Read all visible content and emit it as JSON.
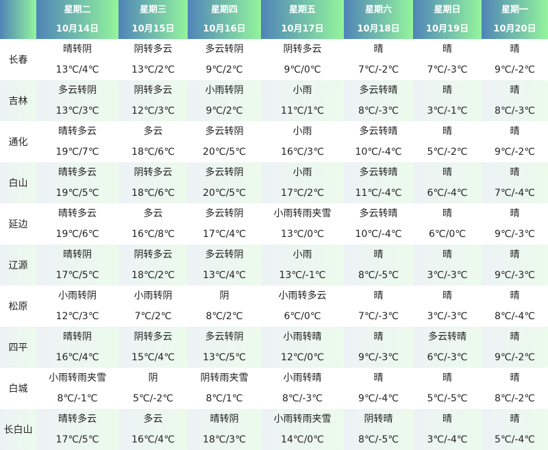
{
  "days": [
    {
      "weekday": "星期二",
      "date": "10月14日"
    },
    {
      "weekday": "星期三",
      "date": "10月15日"
    },
    {
      "weekday": "星期四",
      "date": "10月16日"
    },
    {
      "weekday": "星期五",
      "date": "10月17日"
    },
    {
      "weekday": "星期六",
      "date": "10月18日"
    },
    {
      "weekday": "星期日",
      "date": "10月19日"
    },
    {
      "weekday": "星期一",
      "date": "10月20日"
    }
  ],
  "colors": {
    "header_start": "#4f84b8",
    "header_end": "#93f59c",
    "alt_row_start": "#edf2f5",
    "alt_row_end": "#ecfbec"
  },
  "rows": [
    {
      "city": "长春",
      "cells": [
        [
          "晴转阴",
          "13℃/4℃"
        ],
        [
          "阴转多云",
          "13℃/2℃"
        ],
        [
          "多云转阴",
          "9℃/2℃"
        ],
        [
          "阴转多云",
          "9℃/0℃"
        ],
        [
          "晴",
          "7℃/-2℃"
        ],
        [
          "晴",
          "7℃/-3℃"
        ],
        [
          "晴",
          "9℃/-2℃"
        ]
      ]
    },
    {
      "city": "吉林",
      "cells": [
        [
          "多云转阴",
          "13℃/3℃"
        ],
        [
          "阴转多云",
          "12℃/3℃"
        ],
        [
          "小雨转阴",
          "9℃/2℃"
        ],
        [
          "小雨",
          "11℃/1℃"
        ],
        [
          "多云转晴",
          "8℃/-3℃"
        ],
        [
          "晴",
          "3℃/-1℃"
        ],
        [
          "晴",
          "8℃/-3℃"
        ]
      ]
    },
    {
      "city": "通化",
      "cells": [
        [
          "晴转多云",
          "19℃/7℃"
        ],
        [
          "多云",
          "18℃/6℃"
        ],
        [
          "多云转阴",
          "20℃/5℃"
        ],
        [
          "小雨",
          "16℃/3℃"
        ],
        [
          "多云转晴",
          "10℃/-4℃"
        ],
        [
          "晴",
          "5℃/-2℃"
        ],
        [
          "晴",
          "9℃/-2℃"
        ]
      ]
    },
    {
      "city": "白山",
      "cells": [
        [
          "晴转多云",
          "19℃/5℃"
        ],
        [
          "阴转多云",
          "18℃/6℃"
        ],
        [
          "多云转阴",
          "20℃/5℃"
        ],
        [
          "小雨",
          "17℃/2℃"
        ],
        [
          "多云转晴",
          "11℃/-4℃"
        ],
        [
          "晴",
          "6℃/-4℃"
        ],
        [
          "晴",
          "7℃/-4℃"
        ]
      ]
    },
    {
      "city": "延边",
      "cells": [
        [
          "晴转多云",
          "19℃/6℃"
        ],
        [
          "多云",
          "16℃/8℃"
        ],
        [
          "多云转阴",
          "17℃/4℃"
        ],
        [
          "小雨转雨夹雪",
          "13℃/0℃"
        ],
        [
          "多云转晴",
          "10℃/-4℃"
        ],
        [
          "晴",
          "6℃/0℃"
        ],
        [
          "晴",
          "9℃/-3℃"
        ]
      ]
    },
    {
      "city": "辽源",
      "cells": [
        [
          "晴转阴",
          "17℃/5℃"
        ],
        [
          "阴转多云",
          "18℃/2℃"
        ],
        [
          "多云转阴",
          "13℃/4℃"
        ],
        [
          "小雨",
          "13℃/-1℃"
        ],
        [
          "晴",
          "8℃/-5℃"
        ],
        [
          "晴",
          "3℃/-3℃"
        ],
        [
          "晴",
          "9℃/-3℃"
        ]
      ]
    },
    {
      "city": "松原",
      "cells": [
        [
          "小雨转阴",
          "12℃/3℃"
        ],
        [
          "小雨转阴",
          "7℃/2℃"
        ],
        [
          "阴",
          "8℃/2℃"
        ],
        [
          "小雨转多云",
          "6℃/0℃"
        ],
        [
          "晴",
          "7℃/-3℃"
        ],
        [
          "晴",
          "3℃/-3℃"
        ],
        [
          "晴",
          "8℃/-4℃"
        ]
      ]
    },
    {
      "city": "四平",
      "cells": [
        [
          "晴转阴",
          "16℃/4℃"
        ],
        [
          "阴转多云",
          "15℃/4℃"
        ],
        [
          "多云转阴",
          "13℃/5℃"
        ],
        [
          "小雨转晴",
          "12℃/0℃"
        ],
        [
          "晴",
          "9℃/-3℃"
        ],
        [
          "多云转晴",
          "6℃/-3℃"
        ],
        [
          "晴",
          "9℃/-2℃"
        ]
      ]
    },
    {
      "city": "白城",
      "cells": [
        [
          "小雨转雨夹雪",
          "8℃/-1℃"
        ],
        [
          "阴",
          "5℃/-2℃"
        ],
        [
          "阴转雨夹雪",
          "8℃/1℃"
        ],
        [
          "小雨转晴",
          "8℃/-3℃"
        ],
        [
          "晴",
          "9℃/-4℃"
        ],
        [
          "晴",
          "5℃/-5℃"
        ],
        [
          "晴",
          "8℃/-2℃"
        ]
      ]
    },
    {
      "city": "长白山",
      "cells": [
        [
          "晴转多云",
          "17℃/5℃"
        ],
        [
          "多云",
          "16℃/4℃"
        ],
        [
          "晴转阴",
          "18℃/3℃"
        ],
        [
          "小雨转雨夹雪",
          "14℃/0℃"
        ],
        [
          "阴转晴",
          "8℃/-5℃"
        ],
        [
          "晴",
          "3℃/-4℃"
        ],
        [
          "晴",
          "5℃/-4℃"
        ]
      ]
    }
  ]
}
